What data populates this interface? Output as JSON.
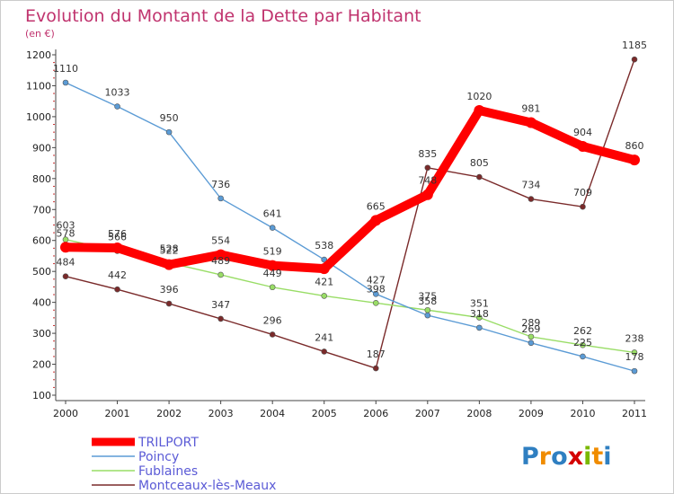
{
  "chart_data": {
    "type": "line",
    "title": "Evolution du Montant de la Dette par Habitant",
    "subtitle": "(en €)",
    "xlabel": "",
    "ylabel": "",
    "categories": [
      "2000",
      "2001",
      "2002",
      "2003",
      "2004",
      "2005",
      "2006",
      "2007",
      "2008",
      "2009",
      "2010",
      "2011"
    ],
    "y_ticks": [
      "100",
      "200",
      "300",
      "400",
      "500",
      "600",
      "700",
      "800",
      "900",
      "1000",
      "1100",
      "1200"
    ],
    "ylim": [
      100,
      1200
    ],
    "grid": false,
    "legend_position": "bottom-left",
    "series": [
      {
        "name": "TRILPORT",
        "color": "#ff0000",
        "values": [
          578,
          576,
          522,
          554,
          519,
          509,
          665,
          748,
          1020,
          981,
          904,
          860
        ],
        "labels": [
          "578",
          "576",
          "522",
          "554",
          "519",
          "",
          "665",
          "748",
          "1020",
          "981",
          "904",
          "860"
        ]
      },
      {
        "name": "Poincy",
        "color": "#5b9bd5",
        "values": [
          1110,
          1033,
          950,
          736,
          641,
          538,
          427,
          358,
          318,
          269,
          225,
          178
        ],
        "labels": [
          "1110",
          "1033",
          "950",
          "736",
          "641",
          "538",
          "427",
          "358",
          "318",
          "269",
          "225",
          "178"
        ]
      },
      {
        "name": "Fublaines",
        "color": "#99dd66",
        "values": [
          603,
          566,
          528,
          489,
          449,
          421,
          398,
          375,
          351,
          289,
          262,
          238
        ],
        "labels": [
          "603",
          "566",
          "528",
          "489",
          "449",
          "421",
          "398",
          "375",
          "351",
          "289",
          "262",
          "238"
        ]
      },
      {
        "name": "Montceaux-lès-Meaux",
        "color": "#7a2a2a",
        "values": [
          484,
          442,
          396,
          347,
          296,
          241,
          187,
          835,
          805,
          734,
          709,
          1185
        ],
        "labels": [
          "484",
          "442",
          "396",
          "347",
          "296",
          "241",
          "187",
          "835",
          "805",
          "734",
          "709",
          "1185"
        ]
      }
    ]
  },
  "branding": {
    "logo_text": "Proxiti"
  }
}
